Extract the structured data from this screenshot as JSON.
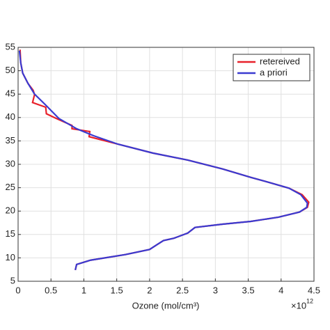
{
  "chart_data": {
    "type": "line",
    "x_label": "Ozone (mol/cm³)",
    "x_scale_base": "×10",
    "x_scale_exp": "12",
    "xlim": [
      0,
      4.5
    ],
    "xticks": [
      0,
      0.5,
      1,
      1.5,
      2,
      2.5,
      3,
      3.5,
      4,
      4.5
    ],
    "ylim": [
      5,
      55
    ],
    "yticks": [
      5,
      10,
      15,
      20,
      25,
      30,
      35,
      40,
      45,
      50,
      55
    ],
    "grid": true,
    "legend": "upper right",
    "series": [
      {
        "name": "retereived",
        "color": "#e8202a",
        "x": [
          0.03,
          0.04,
          0.07,
          0.15,
          0.23,
          0.25,
          0.22,
          0.42,
          0.43,
          0.58,
          0.82,
          0.82,
          1.09,
          1.08,
          1.52,
          2.05,
          2.58,
          3.11,
          3.54,
          3.85,
          4.12,
          4.32,
          4.42,
          4.4,
          4.28,
          3.96,
          3.54,
          3.11,
          2.69,
          2.58,
          2.37,
          2.21,
          2.11,
          2.0,
          1.63,
          1.1,
          0.89,
          0.87
        ],
        "y": [
          54.5,
          51.7,
          49.5,
          47.3,
          45.8,
          44.9,
          43.2,
          42.2,
          40.8,
          39.8,
          38.3,
          37.6,
          37,
          35.9,
          34.3,
          32.4,
          30.9,
          29,
          27.2,
          26,
          24.9,
          23.5,
          21.9,
          20.8,
          19.8,
          18.7,
          17.8,
          17.2,
          16.5,
          15.3,
          14.2,
          13.7,
          12.8,
          11.8,
          10.7,
          9.5,
          8.6,
          7.4
        ]
      },
      {
        "name": "a priori",
        "color": "#3a3ad0",
        "x": [
          0.02,
          0.04,
          0.07,
          0.15,
          0.25,
          0.41,
          0.62,
          0.89,
          1.15,
          1.52,
          2.05,
          2.58,
          3.11,
          3.54,
          3.85,
          4.12,
          4.3,
          4.4,
          4.39,
          4.28,
          3.96,
          3.54,
          3.11,
          2.69,
          2.58,
          2.37,
          2.21,
          2.11,
          2.0,
          1.63,
          1.1,
          0.89,
          0.87
        ],
        "y": [
          54.3,
          51.7,
          49.5,
          47.3,
          45,
          42.8,
          39.8,
          37.6,
          36.1,
          34.3,
          32.4,
          30.9,
          29,
          27.2,
          26,
          24.9,
          23.5,
          21.7,
          20.8,
          19.8,
          18.7,
          17.8,
          17.2,
          16.5,
          15.3,
          14.2,
          13.7,
          12.8,
          11.8,
          10.7,
          9.5,
          8.6,
          7.4
        ]
      }
    ]
  }
}
